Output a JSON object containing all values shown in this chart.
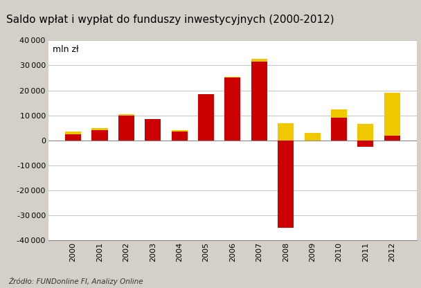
{
  "title": "Saldo wpłat i wypłat do funduszy inwestycyjnych (2000-2012)",
  "ylabel_text": "mln zł",
  "source": "Źródło: FUNDonline FI, Analizy Online",
  "years": [
    "2000",
    "2001",
    "2002",
    "2003",
    "2004",
    "2005",
    "2006",
    "2007",
    "2008",
    "2009",
    "2010",
    "2011",
    "2012"
  ],
  "detaliczne": [
    2500,
    4000,
    10000,
    8500,
    3500,
    18500,
    25000,
    31500,
    -35000,
    0,
    9000,
    -2500,
    2000
  ],
  "niedetaliczne": [
    1000,
    1000,
    500,
    0,
    500,
    0,
    500,
    1000,
    7000,
    3000,
    3500,
    6500,
    17000
  ],
  "color_detaliczne": "#CC0000",
  "color_niedetaliczne": "#F0C800",
  "background_outer": "#D4D0C8",
  "background_plot": "#FFFFFF",
  "ylim": [
    -40000,
    40000
  ],
  "yticks": [
    -40000,
    -30000,
    -20000,
    -10000,
    0,
    10000,
    20000,
    30000,
    40000
  ],
  "title_fontsize": 11,
  "axis_fontsize": 8,
  "legend_fontsize": 9,
  "source_fontsize": 7.5
}
